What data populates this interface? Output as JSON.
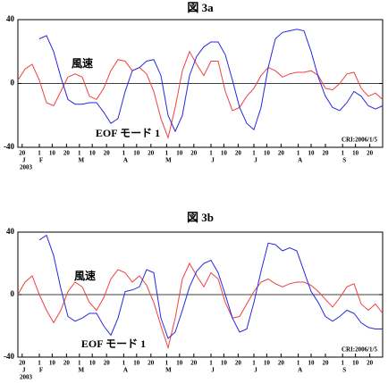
{
  "chart_data": [
    {
      "type": "line",
      "title": "図 3a",
      "annotation": "CRI:2006/1/5",
      "x": [
        "2003-01-17",
        "2003-01-22",
        "2003-01-27",
        "2003-02-01",
        "2003-02-06",
        "2003-02-11",
        "2003-02-16",
        "2003-02-21",
        "2003-02-26",
        "2003-03-03",
        "2003-03-08",
        "2003-03-13",
        "2003-03-18",
        "2003-03-23",
        "2003-03-28",
        "2003-04-02",
        "2003-04-07",
        "2003-04-12",
        "2003-04-17",
        "2003-04-22",
        "2003-04-27",
        "2003-05-02",
        "2003-05-07",
        "2003-05-12",
        "2003-05-17",
        "2003-05-22",
        "2003-05-27",
        "2003-06-01",
        "2003-06-06",
        "2003-06-11",
        "2003-06-16",
        "2003-06-21",
        "2003-06-26",
        "2003-07-01",
        "2003-07-06",
        "2003-07-11",
        "2003-07-16",
        "2003-07-21",
        "2003-07-26",
        "2003-07-31",
        "2003-08-05",
        "2003-08-10",
        "2003-08-15",
        "2003-08-20",
        "2003-08-25",
        "2003-08-30",
        "2003-09-04",
        "2003-09-09",
        "2003-09-14",
        "2003-09-19",
        "2003-09-24",
        "2003-09-29"
      ],
      "series": [
        {
          "name": "風速",
          "color": "#f04040",
          "values": [
            2,
            9,
            12,
            2,
            -12,
            -14,
            -5,
            4,
            6,
            4,
            -8,
            -10,
            -3,
            8,
            15,
            14,
            8,
            10,
            6,
            -5,
            -22,
            -34,
            -15,
            8,
            20,
            12,
            5,
            14,
            14,
            -5,
            -17,
            -15,
            -8,
            -3,
            5,
            10,
            8,
            4,
            6,
            7,
            7,
            8,
            5,
            -3,
            -4,
            0,
            6,
            7,
            -3,
            -8,
            -6,
            -10
          ]
        },
        {
          "name": "EOF モード 1",
          "color": "#2828e0",
          "values": [
            null,
            null,
            null,
            28,
            30,
            20,
            4,
            -10,
            -13,
            -13,
            -12,
            -12,
            -18,
            -25,
            -22,
            -5,
            8,
            10,
            14,
            15,
            5,
            -20,
            -30,
            -20,
            5,
            17,
            23,
            26,
            26,
            18,
            2,
            -15,
            -25,
            -29,
            -15,
            10,
            28,
            32,
            33,
            34,
            33,
            20,
            4,
            -8,
            -15,
            -17,
            -12,
            -5,
            -8,
            -14,
            -16,
            -14
          ]
        }
      ],
      "xlim": [
        "2003-01-17",
        "2003-09-29"
      ],
      "xticks": [
        {
          "value": "2003-01-20",
          "label": "20"
        },
        {
          "value": "2003-02-01",
          "label": "1"
        },
        {
          "value": "2003-02-10",
          "label": "10"
        },
        {
          "value": "2003-02-20",
          "label": "20"
        },
        {
          "value": "2003-03-01",
          "label": "1"
        },
        {
          "value": "2003-03-10",
          "label": "10"
        },
        {
          "value": "2003-03-20",
          "label": "20"
        },
        {
          "value": "2003-04-01",
          "label": "1"
        },
        {
          "value": "2003-04-10",
          "label": "10"
        },
        {
          "value": "2003-04-20",
          "label": "20"
        },
        {
          "value": "2003-05-01",
          "label": "1"
        },
        {
          "value": "2003-05-10",
          "label": "10"
        },
        {
          "value": "2003-05-20",
          "label": "20"
        },
        {
          "value": "2003-06-01",
          "label": "1"
        },
        {
          "value": "2003-06-10",
          "label": "10"
        },
        {
          "value": "2003-06-20",
          "label": "20"
        },
        {
          "value": "2003-07-01",
          "label": "1"
        },
        {
          "value": "2003-07-10",
          "label": "10"
        },
        {
          "value": "2003-07-20",
          "label": "20"
        },
        {
          "value": "2003-08-01",
          "label": "1"
        },
        {
          "value": "2003-08-10",
          "label": "10"
        },
        {
          "value": "2003-08-20",
          "label": "20"
        },
        {
          "value": "2003-09-01",
          "label": "1"
        },
        {
          "value": "2003-09-10",
          "label": "10"
        },
        {
          "value": "2003-09-20",
          "label": "20"
        }
      ],
      "month_labels": [
        {
          "value": "2003-01-20",
          "label": "J"
        },
        {
          "value": "2003-02-01",
          "label": "F"
        },
        {
          "value": "2003-03-01",
          "label": "M"
        },
        {
          "value": "2003-04-01",
          "label": "A"
        },
        {
          "value": "2003-05-01",
          "label": "M"
        },
        {
          "value": "2003-06-01",
          "label": "J"
        },
        {
          "value": "2003-07-01",
          "label": "J"
        },
        {
          "value": "2003-08-01",
          "label": "A"
        },
        {
          "value": "2003-09-01",
          "label": "S"
        }
      ],
      "year_label": "2003",
      "ylim": [
        -40,
        40
      ],
      "yticks": [
        -40,
        0,
        40
      ]
    },
    {
      "type": "line",
      "title": "図 3b",
      "annotation": "CRI:2006/1/5",
      "x": [
        "2003-01-17",
        "2003-01-22",
        "2003-01-27",
        "2003-02-01",
        "2003-02-06",
        "2003-02-11",
        "2003-02-16",
        "2003-02-21",
        "2003-02-26",
        "2003-03-03",
        "2003-03-08",
        "2003-03-13",
        "2003-03-18",
        "2003-03-23",
        "2003-03-28",
        "2003-04-02",
        "2003-04-07",
        "2003-04-12",
        "2003-04-17",
        "2003-04-22",
        "2003-04-27",
        "2003-05-02",
        "2003-05-07",
        "2003-05-12",
        "2003-05-17",
        "2003-05-22",
        "2003-05-27",
        "2003-06-01",
        "2003-06-06",
        "2003-06-11",
        "2003-06-16",
        "2003-06-21",
        "2003-06-26",
        "2003-07-01",
        "2003-07-06",
        "2003-07-11",
        "2003-07-16",
        "2003-07-21",
        "2003-07-26",
        "2003-07-31",
        "2003-08-05",
        "2003-08-10",
        "2003-08-15",
        "2003-08-20",
        "2003-08-25",
        "2003-08-30",
        "2003-09-04",
        "2003-09-09",
        "2003-09-14",
        "2003-09-19",
        "2003-09-24",
        "2003-09-29"
      ],
      "series": [
        {
          "name": "風速",
          "color": "#f04040",
          "values": [
            0,
            8,
            12,
            0,
            -10,
            -18,
            -10,
            2,
            8,
            5,
            -5,
            -10,
            -2,
            10,
            16,
            14,
            8,
            12,
            6,
            -5,
            -20,
            -34,
            -15,
            10,
            20,
            12,
            5,
            14,
            10,
            -5,
            -15,
            -14,
            -6,
            2,
            8,
            10,
            7,
            5,
            7,
            8,
            8,
            6,
            2,
            -3,
            -8,
            -2,
            5,
            7,
            -6,
            -10,
            -6,
            -12
          ]
        },
        {
          "name": "EOF モード 1",
          "color": "#2828e0",
          "values": [
            null,
            null,
            null,
            35,
            38,
            25,
            4,
            -14,
            -17,
            -15,
            -12,
            -12,
            -20,
            -26,
            -15,
            2,
            3,
            5,
            16,
            14,
            -15,
            -28,
            -24,
            -10,
            5,
            15,
            20,
            22,
            14,
            0,
            -15,
            -24,
            -22,
            -5,
            15,
            33,
            32,
            28,
            30,
            28,
            15,
            2,
            -5,
            -14,
            -17,
            -14,
            -10,
            -12,
            -18,
            -21,
            -22,
            -22
          ]
        }
      ],
      "xlim": [
        "2003-01-17",
        "2003-09-29"
      ],
      "xticks": [
        {
          "value": "2003-01-20",
          "label": "20"
        },
        {
          "value": "2003-02-01",
          "label": "1"
        },
        {
          "value": "2003-02-10",
          "label": "10"
        },
        {
          "value": "2003-02-20",
          "label": "20"
        },
        {
          "value": "2003-03-01",
          "label": "1"
        },
        {
          "value": "2003-03-10",
          "label": "10"
        },
        {
          "value": "2003-03-20",
          "label": "20"
        },
        {
          "value": "2003-04-01",
          "label": "1"
        },
        {
          "value": "2003-04-10",
          "label": "10"
        },
        {
          "value": "2003-04-20",
          "label": "20"
        },
        {
          "value": "2003-05-01",
          "label": "1"
        },
        {
          "value": "2003-05-10",
          "label": "10"
        },
        {
          "value": "2003-05-20",
          "label": "20"
        },
        {
          "value": "2003-06-01",
          "label": "1"
        },
        {
          "value": "2003-06-10",
          "label": "10"
        },
        {
          "value": "2003-06-20",
          "label": "20"
        },
        {
          "value": "2003-07-01",
          "label": "1"
        },
        {
          "value": "2003-07-10",
          "label": "10"
        },
        {
          "value": "2003-07-20",
          "label": "20"
        },
        {
          "value": "2003-08-01",
          "label": "1"
        },
        {
          "value": "2003-08-10",
          "label": "10"
        },
        {
          "value": "2003-08-20",
          "label": "20"
        },
        {
          "value": "2003-09-01",
          "label": "1"
        },
        {
          "value": "2003-09-10",
          "label": "10"
        },
        {
          "value": "2003-09-20",
          "label": "20"
        }
      ],
      "month_labels": [
        {
          "value": "2003-01-20",
          "label": "J"
        },
        {
          "value": "2003-02-01",
          "label": "F"
        },
        {
          "value": "2003-03-01",
          "label": "M"
        },
        {
          "value": "2003-04-01",
          "label": "A"
        },
        {
          "value": "2003-05-01",
          "label": "M"
        },
        {
          "value": "2003-06-01",
          "label": "J"
        },
        {
          "value": "2003-07-01",
          "label": "J"
        },
        {
          "value": "2003-08-01",
          "label": "A"
        },
        {
          "value": "2003-09-01",
          "label": "S"
        }
      ],
      "year_label": "2003",
      "ylim": [
        -40,
        40
      ],
      "yticks": [
        -40,
        0,
        40
      ]
    }
  ]
}
